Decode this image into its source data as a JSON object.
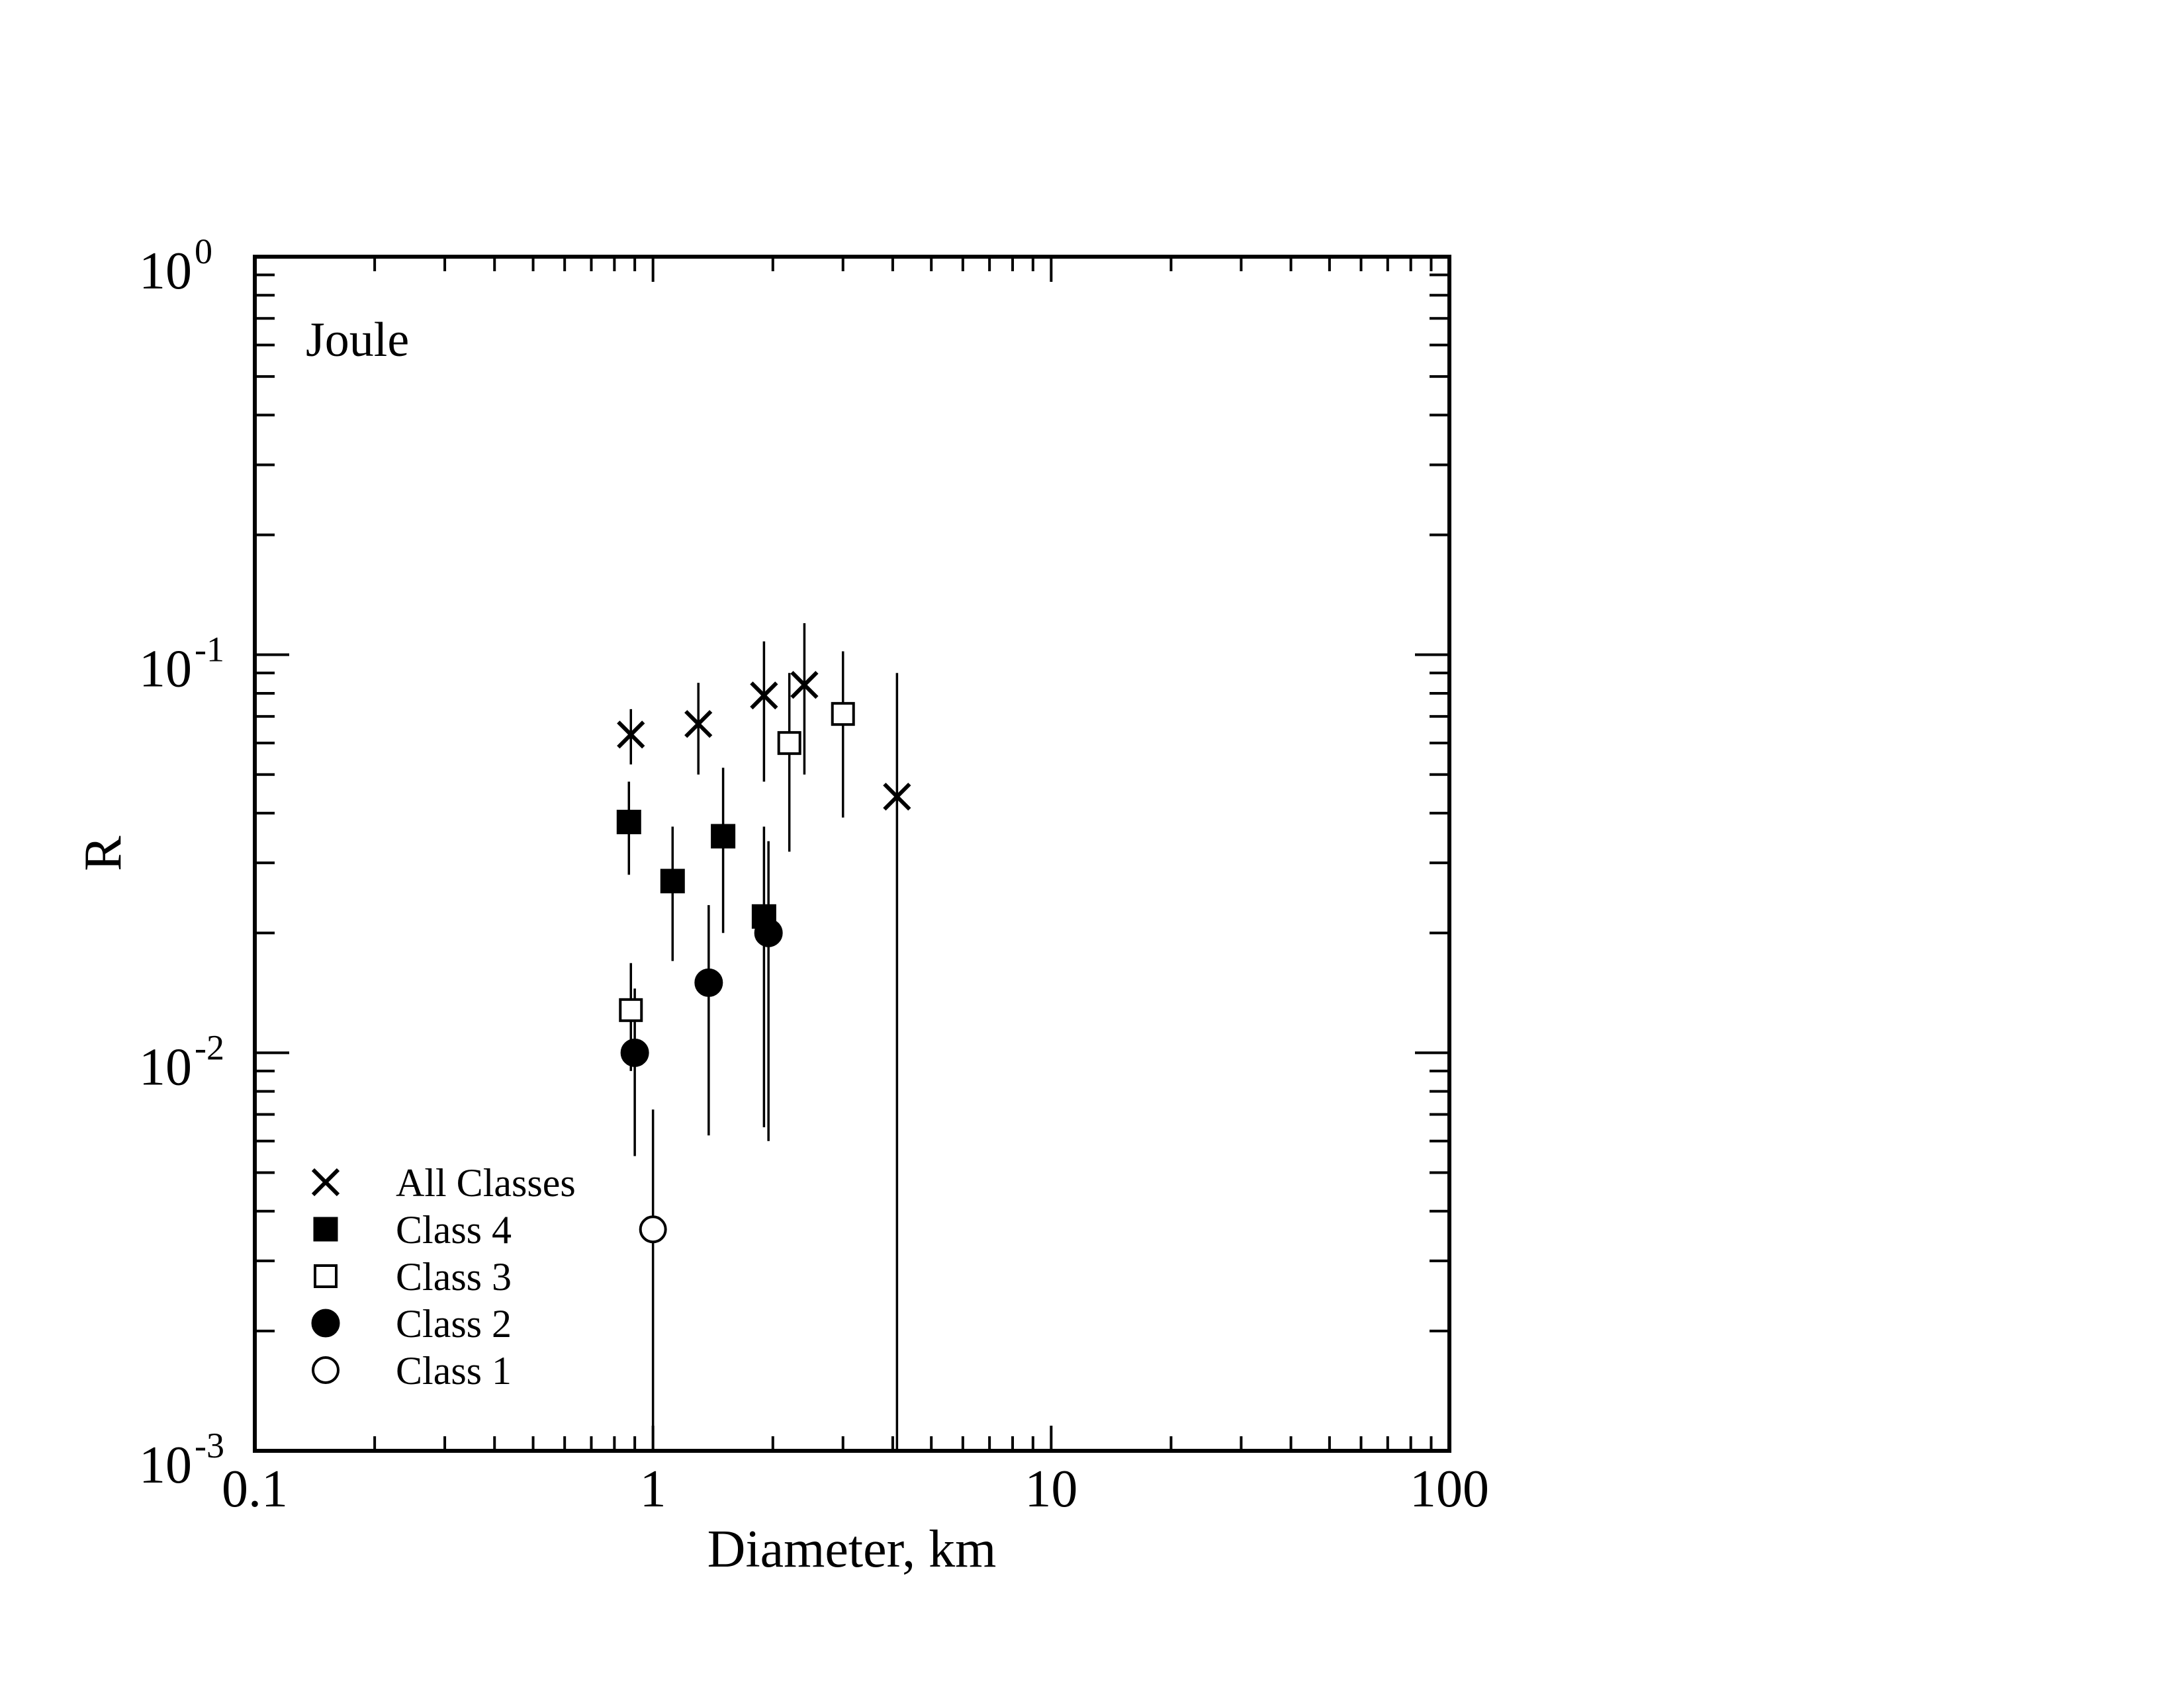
{
  "chart_data": {
    "type": "scatter",
    "title": "Joule",
    "xlabel": "Diameter, km",
    "ylabel": "R",
    "xscale": "log",
    "yscale": "log",
    "xlim": [
      0.1,
      100
    ],
    "ylim": [
      0.001,
      1
    ],
    "x_ticks": [
      {
        "value": 0.1,
        "label": "0.1"
      },
      {
        "value": 1,
        "label": "1"
      },
      {
        "value": 10,
        "label": "10"
      },
      {
        "value": 100,
        "label": "100"
      }
    ],
    "y_ticks": [
      {
        "value": 0.001,
        "base": "10",
        "exp": "-3"
      },
      {
        "value": 0.01,
        "base": "10",
        "exp": "-2"
      },
      {
        "value": 0.1,
        "base": "10",
        "exp": "-1"
      },
      {
        "value": 1,
        "base": "10",
        "exp": "0"
      }
    ],
    "grid": false,
    "legend_position": "bottom-left",
    "series": [
      {
        "name": "All Classes",
        "marker": "x",
        "points": [
          {
            "x": 0.88,
            "y": 0.063,
            "err_low": 0.053,
            "err_high": 0.073
          },
          {
            "x": 1.3,
            "y": 0.067,
            "err_low": 0.05,
            "err_high": 0.085
          },
          {
            "x": 1.9,
            "y": 0.079,
            "err_low": 0.048,
            "err_high": 0.108
          },
          {
            "x": 2.4,
            "y": 0.084,
            "err_low": 0.05,
            "err_high": 0.12
          },
          {
            "x": 4.1,
            "y": 0.044,
            "err_low": 0.001,
            "err_high": 0.09
          }
        ]
      },
      {
        "name": "Class 4",
        "marker": "filled-square",
        "points": [
          {
            "x": 0.87,
            "y": 0.038,
            "err_low": 0.028,
            "err_high": 0.048
          },
          {
            "x": 1.12,
            "y": 0.027,
            "err_low": 0.017,
            "err_high": 0.037
          },
          {
            "x": 1.5,
            "y": 0.035,
            "err_low": 0.02,
            "err_high": 0.052
          },
          {
            "x": 1.9,
            "y": 0.022,
            "err_low": 0.0065,
            "err_high": 0.037
          }
        ]
      },
      {
        "name": "Class 3",
        "marker": "open-square",
        "points": [
          {
            "x": 0.88,
            "y": 0.0128,
            "err_low": 0.009,
            "err_high": 0.0168
          },
          {
            "x": 2.2,
            "y": 0.06,
            "err_low": 0.032,
            "err_high": 0.09
          },
          {
            "x": 3.0,
            "y": 0.071,
            "err_low": 0.039,
            "err_high": 0.102
          }
        ]
      },
      {
        "name": "Class 2",
        "marker": "filled-circle",
        "points": [
          {
            "x": 0.9,
            "y": 0.01,
            "err_low": 0.0055,
            "err_high": 0.0145
          },
          {
            "x": 1.38,
            "y": 0.015,
            "err_low": 0.0062,
            "err_high": 0.0235
          },
          {
            "x": 1.95,
            "y": 0.02,
            "err_low": 0.006,
            "err_high": 0.034
          }
        ]
      },
      {
        "name": "Class 1",
        "marker": "open-circle",
        "points": [
          {
            "x": 1.0,
            "y": 0.0036,
            "err_low": 0.001,
            "err_high": 0.0072
          }
        ]
      }
    ]
  }
}
